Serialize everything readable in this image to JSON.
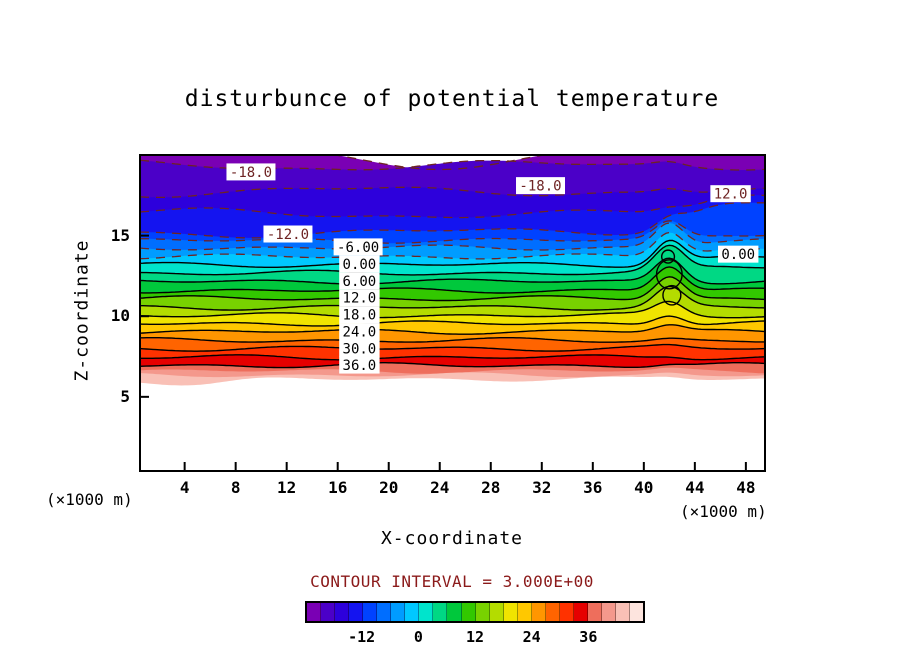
{
  "title": "disturbunce  of  potential  temperature",
  "axes": {
    "x_label": "X-coordinate",
    "y_label": "Z-coordinate",
    "unit_left": "(×1000 m)",
    "unit_right": "(×1000 m)",
    "x_ticks": [
      4,
      8,
      12,
      16,
      20,
      24,
      28,
      32,
      36,
      40,
      44,
      48
    ],
    "y_ticks": [
      5,
      10,
      15
    ]
  },
  "footer": {
    "contour_interval_text": "CONTOUR INTERVAL = 3.000E+00"
  },
  "colorbar": {
    "min": -24,
    "max": 48,
    "ticks": [
      -12,
      0,
      12,
      24,
      36
    ]
  },
  "colors": {
    "frame": "#000000",
    "solid_contour": "#000000",
    "dashed_contour": "#6e2323",
    "dashed_label": "#6e2323",
    "solid_label": "#000000",
    "contour_interval_text": "#8b1a1a",
    "background": "#ffffff"
  },
  "chart_data": {
    "type": "contour",
    "title": "disturbunce of potential temperature",
    "xlabel": "X-coordinate (×1000 m)",
    "ylabel": "Z-coordinate (×1000 m)",
    "x_range": [
      0.5,
      49.5
    ],
    "z_range": [
      0.4,
      20
    ],
    "contour_interval": 3.0,
    "legend_position": "bottom",
    "grid": false,
    "levels": [
      -24,
      -21,
      -18,
      -15,
      -12,
      -9,
      -6,
      -3,
      0,
      3,
      6,
      9,
      12,
      15,
      18,
      21,
      24,
      27,
      30,
      33,
      36,
      39,
      42,
      45
    ],
    "level_mean_z": [
      20.6,
      19.35,
      17.75,
      16.35,
      15.2,
      14.7,
      14.25,
      13.7,
      13.2,
      12.68,
      12.16,
      11.6,
      11.1,
      10.55,
      10.05,
      9.55,
      9.05,
      8.5,
      8.0,
      7.45,
      6.95,
      6.6,
      6.35,
      6.1
    ],
    "palette": [
      "#7a00b4",
      "#4b00c8",
      "#2d00dc",
      "#1414f0",
      "#0042ff",
      "#006eff",
      "#009cff",
      "#00c8ff",
      "#00e4cc",
      "#00d884",
      "#00c83c",
      "#32c800",
      "#78d200",
      "#b4dc00",
      "#f0e400",
      "#ffc800",
      "#ff9600",
      "#ff6400",
      "#ff3200",
      "#e60000",
      "#ee6e5c",
      "#f4988c",
      "#f9c0b6",
      "#fde4de"
    ],
    "contour_labels": [
      {
        "text": "-18.0",
        "x": 9.2,
        "z": 18.95,
        "dashed": true
      },
      {
        "text": "-18.0",
        "x": 31.9,
        "z": 18.1,
        "dashed": true
      },
      {
        "text": "12.0",
        "x": 46.8,
        "z": 17.6,
        "dashed": true
      },
      {
        "text": "-12.0",
        "x": 12.1,
        "z": 15.1,
        "dashed": true
      },
      {
        "text": "-6.00",
        "x": 17.6,
        "z": 14.3,
        "dashed": false
      },
      {
        "text": "0.00",
        "x": 17.7,
        "z": 13.25,
        "dashed": false
      },
      {
        "text": "6.00",
        "x": 17.7,
        "z": 12.2,
        "dashed": false
      },
      {
        "text": "12.0",
        "x": 17.7,
        "z": 11.15,
        "dashed": false
      },
      {
        "text": "18.0",
        "x": 17.7,
        "z": 10.1,
        "dashed": false
      },
      {
        "text": "24.0",
        "x": 17.7,
        "z": 9.05,
        "dashed": false
      },
      {
        "text": "30.0",
        "x": 17.7,
        "z": 8.0,
        "dashed": false
      },
      {
        "text": "36.0",
        "x": 17.7,
        "z": 6.97,
        "dashed": false
      },
      {
        "text": "0.00",
        "x": 47.4,
        "z": 13.85,
        "dashed": false
      }
    ],
    "features": {
      "disturbance_center_x": 42,
      "white_above_level": -24,
      "white_below_level": 45
    }
  }
}
